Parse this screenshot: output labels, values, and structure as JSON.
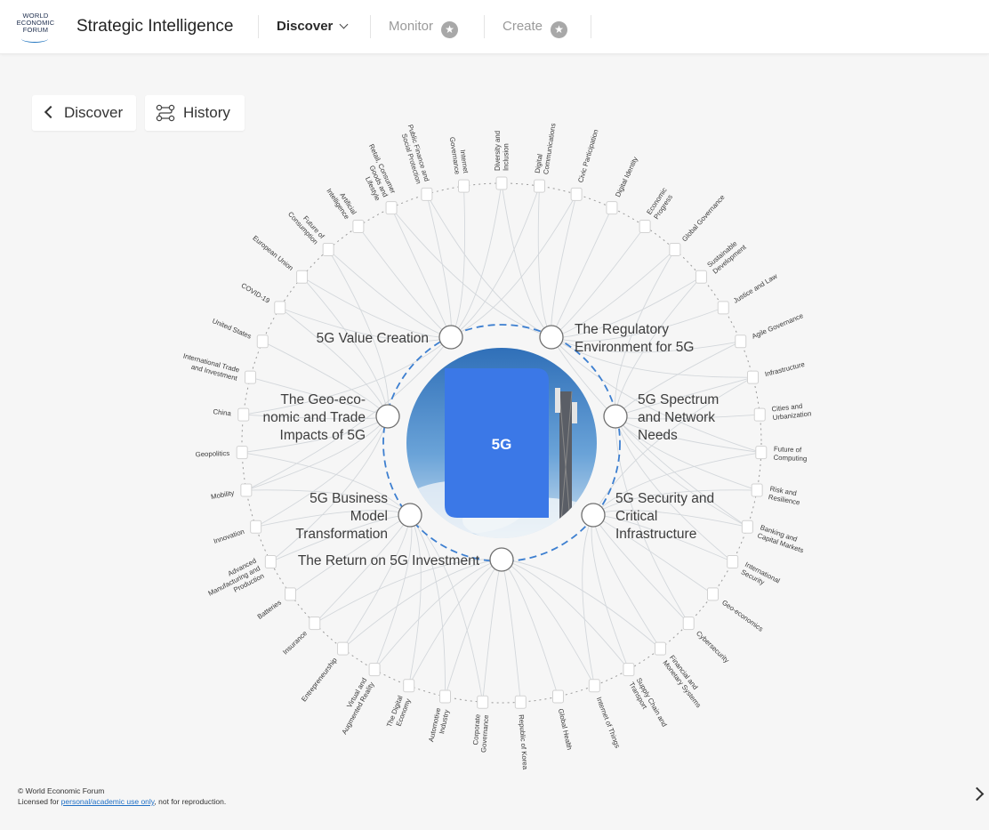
{
  "header": {
    "logo_lines": [
      "WORLD",
      "ECONOMIC",
      "FORUM"
    ],
    "app_title": "Strategic Intelligence",
    "nav": [
      {
        "label": "Discover",
        "active": true,
        "icon": "chevron-down-icon"
      },
      {
        "label": "Monitor",
        "active": false,
        "icon": "star-icon"
      },
      {
        "label": "Create",
        "active": false,
        "icon": "star-icon"
      }
    ]
  },
  "controls": {
    "back_label": "Discover",
    "history_label": "History"
  },
  "center": {
    "label": "5G",
    "tile_color": "#3b78e7"
  },
  "key_issues": [
    {
      "lines": [
        "5G Value Creation"
      ]
    },
    {
      "lines": [
        "The Regulatory",
        "Environment for 5G"
      ]
    },
    {
      "lines": [
        "5G Spectrum",
        "and Network",
        "Needs"
      ]
    },
    {
      "lines": [
        "5G Security and",
        "Critical",
        "Infrastructure"
      ]
    },
    {
      "lines": [
        "The Return on 5G Investment"
      ]
    },
    {
      "lines": [
        "5G Business",
        "Model",
        "Transformation"
      ]
    },
    {
      "lines": [
        "The Geo-eco-",
        "nomic and Trade",
        "Impacts of 5G"
      ]
    }
  ],
  "topics": [
    {
      "lines": [
        "Diversity and",
        "Inclusion"
      ]
    },
    {
      "lines": [
        "Digital",
        "Communications"
      ]
    },
    {
      "lines": [
        "Civic Participation"
      ]
    },
    {
      "lines": [
        "Digital Identity"
      ]
    },
    {
      "lines": [
        "Economic",
        "Progress"
      ]
    },
    {
      "lines": [
        "Global Governance"
      ]
    },
    {
      "lines": [
        "Sustainable",
        "Development"
      ]
    },
    {
      "lines": [
        "Justice and Law"
      ]
    },
    {
      "lines": [
        "Agile Governance"
      ]
    },
    {
      "lines": [
        "Infrastructure"
      ]
    },
    {
      "lines": [
        "Cities and",
        "Urbanization"
      ]
    },
    {
      "lines": [
        "Future of",
        "Computing"
      ]
    },
    {
      "lines": [
        "Risk and",
        "Resilience"
      ]
    },
    {
      "lines": [
        "Banking and",
        "Capital Markets"
      ]
    },
    {
      "lines": [
        "International",
        "Security"
      ]
    },
    {
      "lines": [
        "Geo-economics"
      ]
    },
    {
      "lines": [
        "Cybersecurity"
      ]
    },
    {
      "lines": [
        "Financial and",
        "Monetary Systems"
      ]
    },
    {
      "lines": [
        "Supply Chain and",
        "Transport"
      ]
    },
    {
      "lines": [
        "Internet of Things"
      ]
    },
    {
      "lines": [
        "Global Health"
      ]
    },
    {
      "lines": [
        "Republic of Korea"
      ]
    },
    {
      "lines": [
        "Corporate",
        "Governance"
      ]
    },
    {
      "lines": [
        "Automotive",
        "Industry"
      ]
    },
    {
      "lines": [
        "The Digital",
        "Economy"
      ]
    },
    {
      "lines": [
        "Virtual and",
        "Augmented Reality"
      ]
    },
    {
      "lines": [
        "Entrepreneurship"
      ]
    },
    {
      "lines": [
        "Insurance"
      ]
    },
    {
      "lines": [
        "Batteries"
      ]
    },
    {
      "lines": [
        "Advanced",
        "Manufacturing and",
        "Production"
      ]
    },
    {
      "lines": [
        "Innovation"
      ]
    },
    {
      "lines": [
        "Mobility"
      ]
    },
    {
      "lines": [
        "Geopolitics"
      ]
    },
    {
      "lines": [
        "China"
      ]
    },
    {
      "lines": [
        "International Trade",
        "and Investment"
      ]
    },
    {
      "lines": [
        "United States"
      ]
    },
    {
      "lines": [
        "COVID-19"
      ]
    },
    {
      "lines": [
        "European Union"
      ]
    },
    {
      "lines": [
        "Future of",
        "Consumption"
      ]
    },
    {
      "lines": [
        "Artificial",
        "Intelligence"
      ]
    },
    {
      "lines": [
        "Retail, Consumer",
        "Goods and",
        "Lifestyle"
      ]
    },
    {
      "lines": [
        "Public Finance and",
        "Social Protection"
      ]
    },
    {
      "lines": [
        "Internet",
        "Governance"
      ]
    }
  ],
  "footer": {
    "copyright": "© World Economic Forum",
    "license_prefix": "Licensed for ",
    "license_link": "personal/academic use only",
    "license_suffix": ", not for reproduction."
  }
}
